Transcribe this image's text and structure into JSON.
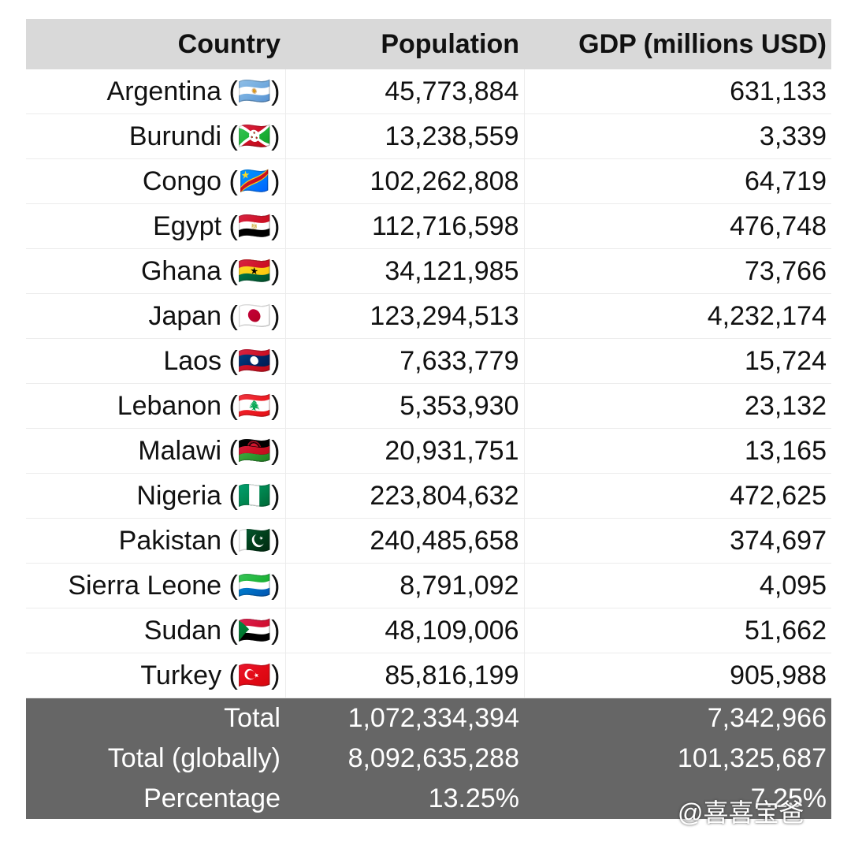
{
  "table": {
    "header": [
      "Country",
      "Population",
      "GDP (millions USD)"
    ],
    "rows": [
      [
        "Argentina (🇦🇷)",
        "45,773,884",
        "631,133"
      ],
      [
        "Burundi (🇧🇮)",
        "13,238,559",
        "3,339"
      ],
      [
        "Congo (🇨🇩)",
        "102,262,808",
        "64,719"
      ],
      [
        "Egypt (🇪🇬)",
        "112,716,598",
        "476,748"
      ],
      [
        "Ghana (🇬🇭)",
        "34,121,985",
        "73,766"
      ],
      [
        "Japan (🇯🇵)",
        "123,294,513",
        "4,232,174"
      ],
      [
        "Laos (🇱🇦)",
        "7,633,779",
        "15,724"
      ],
      [
        "Lebanon (🇱🇧)",
        "5,353,930",
        "23,132"
      ],
      [
        "Malawi (🇲🇼)",
        "20,931,751",
        "13,165"
      ],
      [
        "Nigeria (🇳🇬)",
        "223,804,632",
        "472,625"
      ],
      [
        "Pakistan (🇵🇰)",
        "240,485,658",
        "374,697"
      ],
      [
        "Sierra Leone (🇸🇱)",
        "8,791,092",
        "4,095"
      ],
      [
        "Sudan (🇸🇩)",
        "48,109,006",
        "51,662"
      ],
      [
        "Turkey (🇹🇷)",
        "85,816,199",
        "905,988"
      ]
    ],
    "footer": [
      [
        "Total",
        "1,072,334,394",
        "7,342,966"
      ],
      [
        "Total (globally)",
        "8,092,635,288",
        "101,325,687"
      ],
      [
        "Percentage",
        "13.25%",
        "7.25%"
      ]
    ]
  },
  "watermark": "@喜喜宝爸"
}
